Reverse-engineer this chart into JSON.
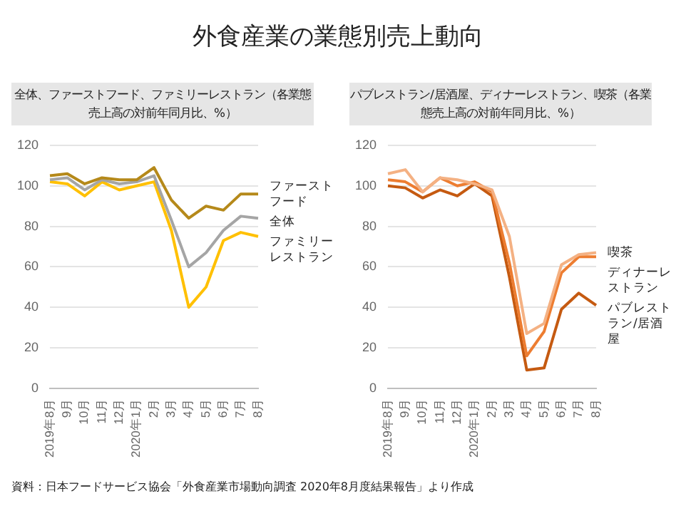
{
  "chart_data": [
    {
      "type": "line",
      "title": "外食産業の業態別売上動向",
      "subtitle": "全体、ファーストフード、ファミリーレストラン（各業態売上高の対前年同月比、%）",
      "categories": [
        "2019年8月",
        "9月",
        "10月",
        "11月",
        "12月",
        "2020年1月",
        "2月",
        "3月",
        "4月",
        "5月",
        "6月",
        "7月",
        "8月"
      ],
      "ylim": [
        0,
        120
      ],
      "yticks": [
        0,
        20,
        40,
        60,
        80,
        100,
        120
      ],
      "grid": "y",
      "legend": false,
      "marker": "none",
      "series": [
        {
          "name": "ファーストフード",
          "color": "#b5891a",
          "values": [
            105,
            106,
            101,
            104,
            103,
            103,
            109,
            93,
            84,
            90,
            88,
            96,
            96
          ]
        },
        {
          "name": "全体",
          "color": "#a5a5a5",
          "values": [
            103,
            104,
            98,
            103,
            101,
            102,
            105,
            83,
            60,
            67,
            78,
            85,
            84
          ]
        },
        {
          "name": "ファミリーレストラン",
          "color": "#ffc000",
          "values": [
            102,
            101,
            95,
            102,
            98,
            100,
            102,
            78,
            40,
            50,
            73,
            77,
            75
          ]
        }
      ]
    },
    {
      "type": "line",
      "subtitle": "パブレストラン/居酒屋、ディナーレストラン、喫茶（各業態売上高の対前年同月比、%）",
      "categories": [
        "2019年8月",
        "9月",
        "10月",
        "11月",
        "12月",
        "2020年1月",
        "2月",
        "3月",
        "4月",
        "5月",
        "6月",
        "7月",
        "8月"
      ],
      "ylim": [
        0,
        120
      ],
      "yticks": [
        0,
        20,
        40,
        60,
        80,
        100,
        120
      ],
      "grid": "y",
      "legend": false,
      "marker": "none",
      "annotations": [
        "資料：日本フードサービス協会「外食産業市場動向調査 2020年8月度結果報告」より作成"
      ],
      "series": [
        {
          "name": "喫茶",
          "color": "#f4b183",
          "values": [
            106,
            108,
            97,
            104,
            103,
            101,
            98,
            75,
            27,
            32,
            61,
            66,
            67
          ]
        },
        {
          "name": "ディナーレストラン",
          "color": "#ed7d31",
          "values": [
            103,
            102,
            97,
            104,
            100,
            102,
            97,
            62,
            16,
            28,
            57,
            65,
            65
          ]
        },
        {
          "name": "パブレストラン/居酒屋",
          "color": "#c55a11",
          "values": [
            100,
            99,
            94,
            98,
            95,
            101,
            95,
            55,
            9,
            10,
            39,
            47,
            41
          ]
        }
      ]
    }
  ]
}
